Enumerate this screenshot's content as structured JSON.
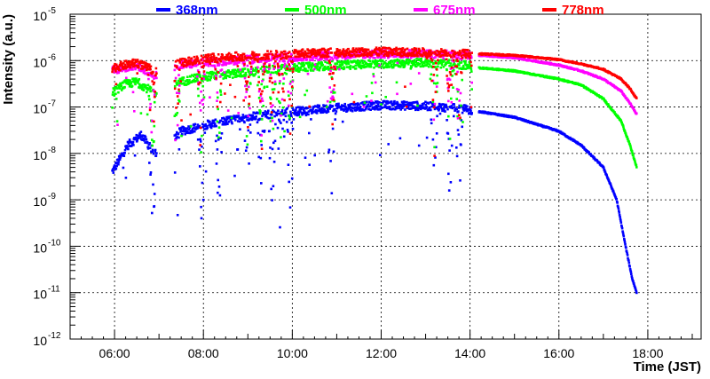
{
  "chart_data": {
    "type": "scatter",
    "title": "",
    "xlabel": "Time (JST)",
    "ylabel": "Intensity (a.u.)",
    "y_scale": "log",
    "xlim_hours": [
      5.0,
      19.2
    ],
    "ylim_exp": [
      -12,
      -5
    ],
    "grid": true,
    "legend_position": "top",
    "x_ticks": [
      {
        "hour": 6,
        "label": "06:00"
      },
      {
        "hour": 8,
        "label": "08:00"
      },
      {
        "hour": 10,
        "label": "10:00"
      },
      {
        "hour": 12,
        "label": "12:00"
      },
      {
        "hour": 14,
        "label": "14:00"
      },
      {
        "hour": 16,
        "label": "16:00"
      },
      {
        "hour": 18,
        "label": "18:00"
      }
    ],
    "y_ticks": [
      {
        "exp": -5,
        "base": "10",
        "sup": "-5"
      },
      {
        "exp": -6,
        "base": "10",
        "sup": "-6"
      },
      {
        "exp": -7,
        "base": "10",
        "sup": "-7"
      },
      {
        "exp": -8,
        "base": "10",
        "sup": "-8"
      },
      {
        "exp": -9,
        "base": "10",
        "sup": "-9"
      },
      {
        "exp": -10,
        "base": "10",
        "sup": "-10"
      },
      {
        "exp": -11,
        "base": "10",
        "sup": "-11"
      },
      {
        "exp": -12,
        "base": "10",
        "sup": "-12"
      }
    ],
    "gaps_hours": [
      [
        6.95,
        7.35
      ],
      [
        14.05,
        14.2
      ]
    ],
    "dip_hours": [
      6.85,
      7.4,
      7.95,
      8.35,
      9.0,
      9.3,
      9.55,
      9.75,
      9.95,
      10.9,
      13.2,
      13.55,
      13.75,
      14.1
    ],
    "series": [
      {
        "name": "368nm",
        "color": "#0000ff",
        "points": [
          [
            5.95,
            4e-09
          ],
          [
            6.3,
            1.5e-08
          ],
          [
            6.6,
            2.5e-08
          ],
          [
            6.9,
            1e-08
          ],
          [
            7.5,
            3e-08
          ],
          [
            8.0,
            4e-08
          ],
          [
            8.5,
            5e-08
          ],
          [
            9.0,
            6e-08
          ],
          [
            10.0,
            8e-08
          ],
          [
            11.0,
            9.5e-08
          ],
          [
            12.0,
            1.1e-07
          ],
          [
            13.0,
            1.05e-07
          ],
          [
            13.9,
            9e-08
          ],
          [
            14.2,
            8e-08
          ],
          [
            15.0,
            6e-08
          ],
          [
            16.0,
            3e-08
          ],
          [
            16.5,
            1.5e-08
          ],
          [
            17.0,
            5e-09
          ],
          [
            17.3,
            1e-09
          ],
          [
            17.5,
            1e-10
          ],
          [
            17.65,
            2e-11
          ],
          [
            17.75,
            1e-11
          ]
        ]
      },
      {
        "name": "500nm",
        "color": "#00ff00",
        "points": [
          [
            5.95,
            2e-07
          ],
          [
            6.2,
            3e-07
          ],
          [
            6.5,
            3.5e-07
          ],
          [
            6.9,
            2e-07
          ],
          [
            7.5,
            3.5e-07
          ],
          [
            8.0,
            4.5e-07
          ],
          [
            8.5,
            5e-07
          ],
          [
            9.0,
            5.5e-07
          ],
          [
            10.0,
            7e-07
          ],
          [
            11.0,
            8e-07
          ],
          [
            12.0,
            8.5e-07
          ],
          [
            13.0,
            9e-07
          ],
          [
            13.9,
            8e-07
          ],
          [
            14.2,
            7e-07
          ],
          [
            15.0,
            6e-07
          ],
          [
            16.0,
            4e-07
          ],
          [
            16.5,
            3e-07
          ],
          [
            17.0,
            1.5e-07
          ],
          [
            17.4,
            5e-08
          ],
          [
            17.6,
            1.5e-08
          ],
          [
            17.75,
            5e-09
          ]
        ]
      },
      {
        "name": "675nm",
        "color": "#ff00ff",
        "points": [
          [
            5.95,
            6e-07
          ],
          [
            6.5,
            8e-07
          ],
          [
            6.9,
            5e-07
          ],
          [
            7.5,
            8e-07
          ],
          [
            8.0,
            9e-07
          ],
          [
            8.5,
            1e-06
          ],
          [
            9.0,
            1.05e-06
          ],
          [
            10.0,
            1.2e-06
          ],
          [
            11.0,
            1.3e-06
          ],
          [
            12.0,
            1.4e-06
          ],
          [
            13.0,
            1.4e-06
          ],
          [
            13.9,
            1.3e-06
          ],
          [
            14.2,
            1.3e-06
          ],
          [
            15.0,
            1.15e-06
          ],
          [
            16.0,
            8e-07
          ],
          [
            16.5,
            6e-07
          ],
          [
            17.0,
            4e-07
          ],
          [
            17.4,
            2.2e-07
          ],
          [
            17.6,
            1.2e-07
          ],
          [
            17.75,
            7e-08
          ]
        ]
      },
      {
        "name": "778nm",
        "color": "#ff0000",
        "points": [
          [
            5.95,
            7e-07
          ],
          [
            6.5,
            9e-07
          ],
          [
            6.9,
            6e-07
          ],
          [
            7.5,
            9e-07
          ],
          [
            8.0,
            1.1e-06
          ],
          [
            8.5,
            1.2e-06
          ],
          [
            9.0,
            1.25e-06
          ],
          [
            10.0,
            1.4e-06
          ],
          [
            11.0,
            1.5e-06
          ],
          [
            12.0,
            1.55e-06
          ],
          [
            13.0,
            1.5e-06
          ],
          [
            13.9,
            1.4e-06
          ],
          [
            14.2,
            1.4e-06
          ],
          [
            15.0,
            1.3e-06
          ],
          [
            16.0,
            1.05e-06
          ],
          [
            16.5,
            8.5e-07
          ],
          [
            17.0,
            6.5e-07
          ],
          [
            17.4,
            4e-07
          ],
          [
            17.6,
            2.5e-07
          ],
          [
            17.75,
            1.5e-07
          ]
        ]
      }
    ]
  }
}
